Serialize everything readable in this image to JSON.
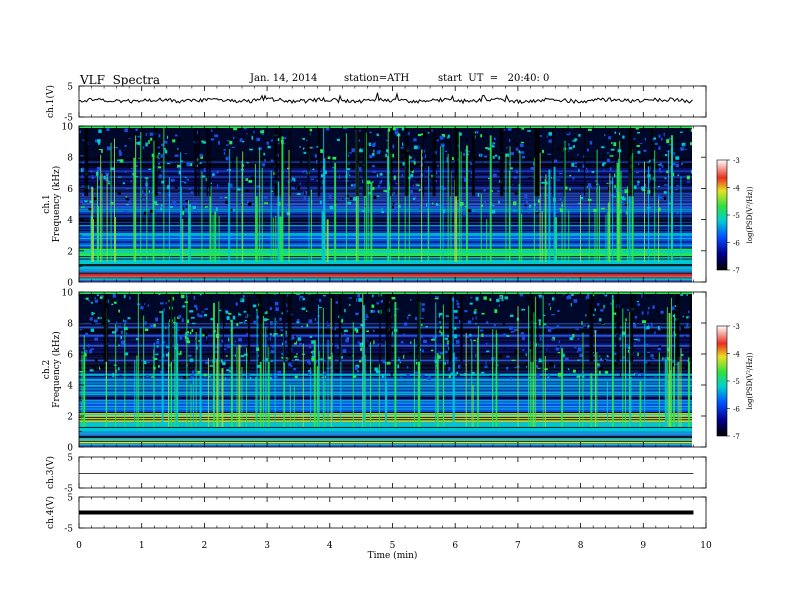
{
  "header": {
    "title": "VLF  Spectra",
    "date": "Jan. 14, 2014",
    "station": "station=ATH",
    "start": "start  UT  =   20:40: 0"
  },
  "chart_data": [
    {
      "type": "line",
      "panel": "ch1-waveform",
      "ylabel": "ch.1(V)",
      "ylim": [
        -5,
        5
      ],
      "yticks": [
        "5",
        "-5"
      ],
      "note": "noisy waveform near 0 V",
      "x": [
        0,
        1,
        2,
        3,
        4,
        5,
        6,
        7,
        8,
        9,
        9.8
      ],
      "series": [
        {
          "values": [
            0.2,
            0.3,
            0.1,
            0.4,
            0.2,
            0.3,
            0.1,
            0.2,
            0.3,
            0.1,
            0.2
          ]
        }
      ]
    },
    {
      "type": "heatmap",
      "panel": "ch1-spectrogram",
      "ylabel": "ch.1\nFrequency (kHz)",
      "ylim": [
        0,
        10
      ],
      "yticks": [
        "0",
        "2",
        "4",
        "6",
        "8",
        "10"
      ],
      "xlim": [
        0,
        10
      ],
      "colorbar": {
        "label": "log(PSD(V²/Hz))",
        "range": [
          -7,
          -3
        ],
        "ticks": [
          "-3",
          "-4",
          "-5",
          "-6",
          "-7"
        ]
      }
    },
    {
      "type": "heatmap",
      "panel": "ch2-spectrogram",
      "ylabel": "ch.2\nFrequency (kHz)",
      "ylim": [
        0,
        10
      ],
      "yticks": [
        "0",
        "2",
        "4",
        "6",
        "8",
        "10"
      ],
      "xlim": [
        0,
        10
      ],
      "colorbar": {
        "label": "log(PSD(V²/Hz))",
        "range": [
          -7,
          -3
        ],
        "ticks": [
          "-3",
          "-4",
          "-5",
          "-6",
          "-7"
        ]
      }
    },
    {
      "type": "line",
      "panel": "ch3-waveform",
      "ylabel": "ch.3(V)",
      "ylim": [
        -5,
        5
      ],
      "yticks": [
        "5",
        "-5"
      ],
      "x": [
        0,
        9.8
      ],
      "series": [
        {
          "values": [
            0,
            0
          ]
        }
      ]
    },
    {
      "type": "line",
      "panel": "ch4-waveform",
      "ylabel": "ch.4(V)",
      "ylim": [
        -5,
        5
      ],
      "yticks": [
        "5",
        "-5"
      ],
      "x": [
        0,
        9.8
      ],
      "series": [
        {
          "values": [
            0,
            0
          ]
        }
      ]
    }
  ],
  "xaxis": {
    "label": "Time  (min)",
    "ticks": [
      "0",
      "1",
      "2",
      "3",
      "4",
      "5",
      "6",
      "7",
      "8",
      "9",
      "10"
    ],
    "xlim": [
      0,
      10
    ],
    "data_end": 9.8
  },
  "colors": {
    "spec_dark": "#00006e",
    "spec_blue": "#0a50e6",
    "spec_cyan": "#00c8d2",
    "spec_green": "#28e650",
    "spec_yellow": "#e6dc32",
    "spec_red": "#e61e1e"
  }
}
